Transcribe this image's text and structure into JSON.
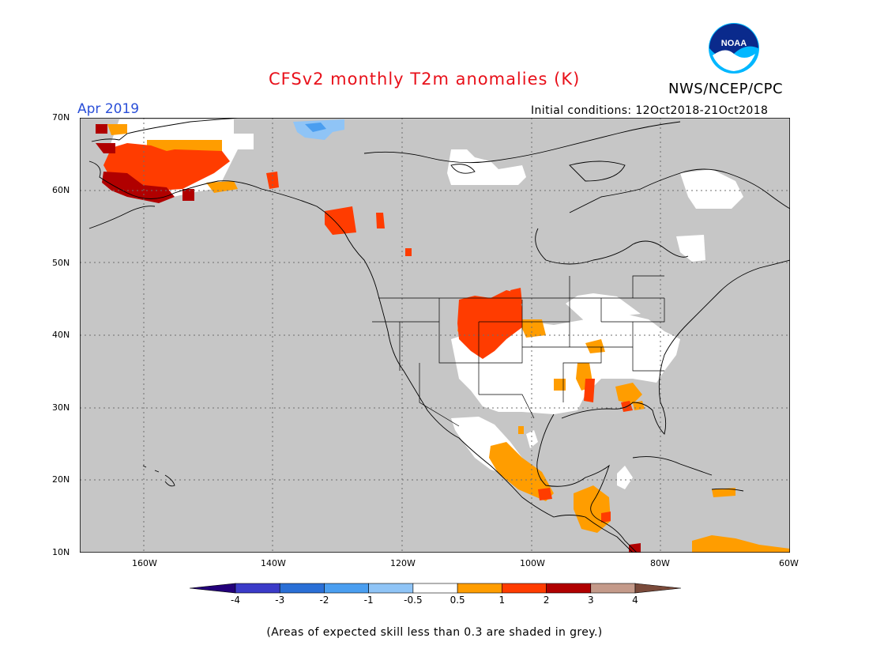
{
  "header": {
    "title": "CFSv2 monthly T2m anomalies (K)",
    "agency": "NWS/NCEP/CPC",
    "valid_month": "Apr 2019",
    "initial_conditions": "Initial conditions: 12Oct2018-21Oct2018",
    "logo_text": "NOAA"
  },
  "map": {
    "lat_labels": [
      "70N",
      "60N",
      "50N",
      "40N",
      "30N",
      "20N",
      "10N"
    ],
    "lon_labels": [
      "160W",
      "140W",
      "120W",
      "100W",
      "80W",
      "60W"
    ],
    "background_color": "#c6c6c6",
    "grid": true
  },
  "colorbar": {
    "labels": [
      "-4",
      "-3",
      "-2",
      "-1",
      "-0.5",
      "0.5",
      "1",
      "2",
      "3",
      "4"
    ],
    "colors": [
      "#23007a",
      "#3b3bc8",
      "#2a6fd6",
      "#4a9ef0",
      "#8fc4f6",
      "#ffffff",
      "#ff9d00",
      "#ff3c00",
      "#b00000",
      "#c49a8a",
      "#7a4a3a"
    ]
  },
  "footnote": "(Areas of expected skill less than 0.3 are shaded in grey.)"
}
